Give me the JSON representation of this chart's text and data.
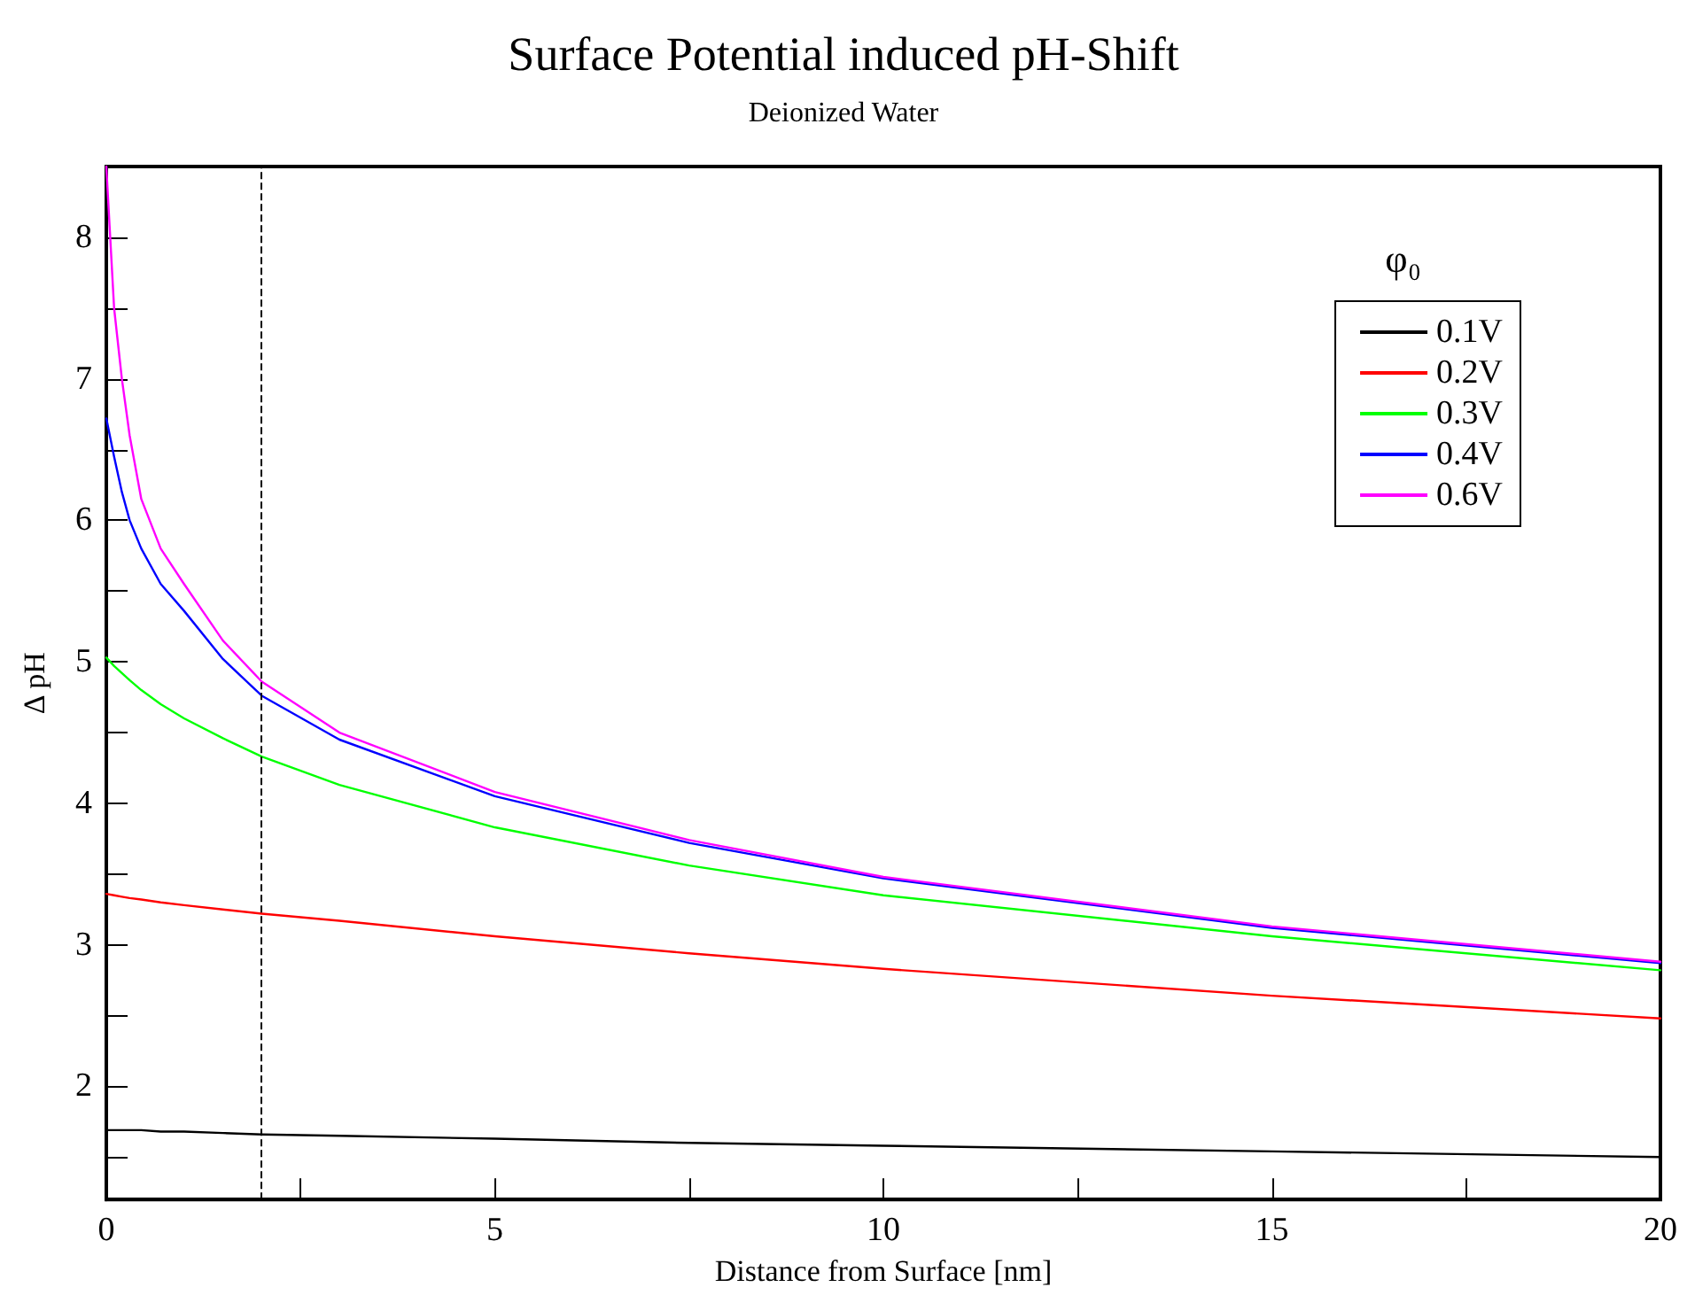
{
  "chart_data": {
    "type": "line",
    "title": "Surface Potential induced pH-Shift",
    "subtitle": "Deionized Water",
    "xlabel": "Distance from Surface [nm]",
    "ylabel": "Δ pH",
    "legend_title": "φ₀",
    "legend": "top right",
    "marker": "none",
    "line_style": "solid",
    "grid": false,
    "x": [
      0,
      0.1,
      0.2,
      0.3,
      0.45,
      0.7,
      1,
      1.5,
      2,
      3,
      5,
      7.5,
      10,
      15,
      20
    ],
    "xlim": [
      0,
      20
    ],
    "xticks": [
      0,
      {
        "value": 2.5,
        "label": null
      },
      5,
      {
        "value": 7.5,
        "label": null
      },
      10,
      {
        "value": 12.5,
        "label": null
      },
      15,
      {
        "value": 17.5,
        "label": null
      },
      20
    ],
    "ylim": [
      1.2,
      8.5
    ],
    "yticks": [
      {
        "value": 1.5,
        "label": null
      },
      2,
      {
        "value": 2.5,
        "label": null
      },
      3,
      {
        "value": 3.5,
        "label": null
      },
      4,
      {
        "value": 4.5,
        "label": null
      },
      5,
      {
        "value": 5.5,
        "label": null
      },
      6,
      {
        "value": 6.5,
        "label": null
      },
      7,
      {
        "value": 7.5,
        "label": null
      },
      8
    ],
    "series": [
      {
        "name": "0.1V",
        "color": "#000000",
        "values": [
          1.69,
          1.69,
          1.69,
          1.69,
          1.69,
          1.68,
          1.68,
          1.67,
          1.66,
          1.65,
          1.63,
          1.6,
          1.58,
          1.54,
          1.5
        ]
      },
      {
        "name": "0.2V",
        "color": "#ff0000",
        "values": [
          3.36,
          3.35,
          3.34,
          3.33,
          3.32,
          3.3,
          3.28,
          3.25,
          3.22,
          3.17,
          3.06,
          2.94,
          2.83,
          2.64,
          2.48
        ]
      },
      {
        "name": "0.3V",
        "color": "#00ff00",
        "values": [
          5.03,
          4.97,
          4.92,
          4.87,
          4.8,
          4.7,
          4.6,
          4.46,
          4.33,
          4.13,
          3.83,
          3.56,
          3.35,
          3.06,
          2.82
        ]
      },
      {
        "name": "0.4V",
        "color": "#0000ff",
        "values": [
          6.72,
          6.45,
          6.2,
          6.0,
          5.8,
          5.55,
          5.36,
          5.02,
          4.76,
          4.45,
          4.05,
          3.72,
          3.47,
          3.12,
          2.87
        ]
      },
      {
        "name": "0.6V",
        "color": "#ff00ff",
        "values": [
          8.5,
          7.5,
          7.0,
          6.6,
          6.15,
          5.8,
          5.55,
          5.15,
          4.86,
          4.5,
          4.08,
          3.74,
          3.48,
          3.13,
          2.88
        ]
      }
    ],
    "ref_lines": [
      {
        "axis": "x",
        "value": 2,
        "color": "#000000",
        "line_style": "dashed"
      }
    ]
  }
}
